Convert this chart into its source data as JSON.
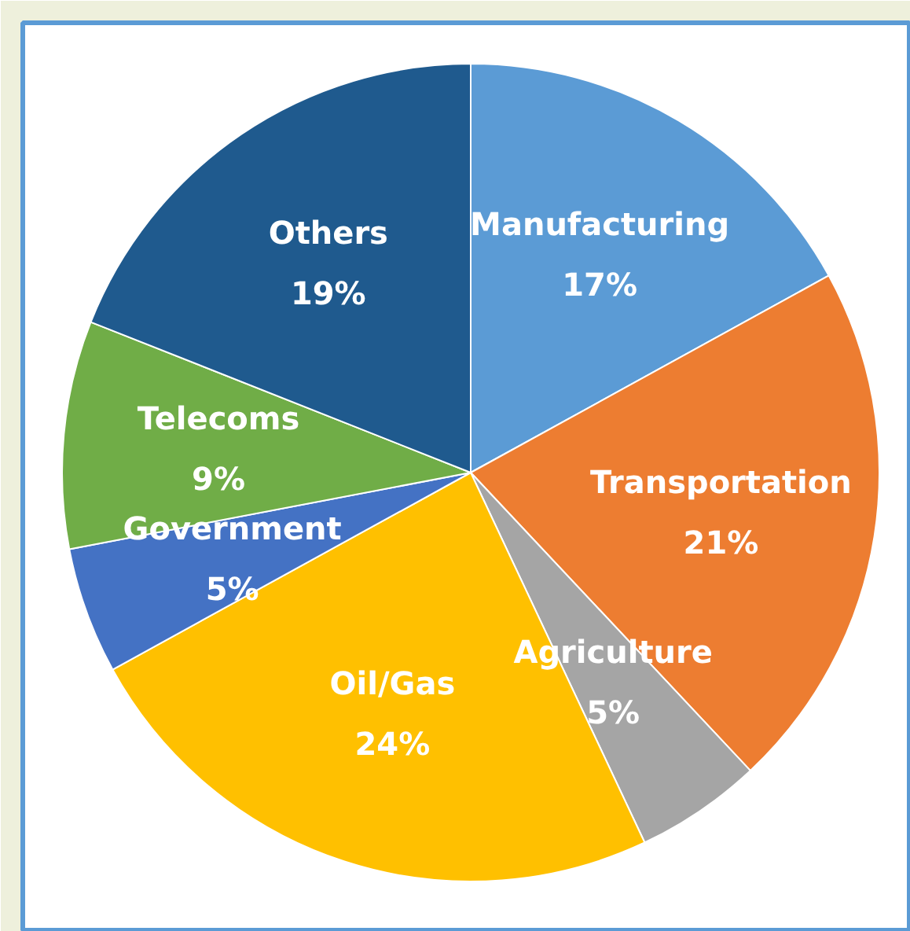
{
  "chart_data": {
    "type": "pie",
    "categories": [
      "Manufacturing",
      "Transportation",
      "Agriculture",
      "Oil/Gas",
      "Government",
      "Telecoms",
      "Others"
    ],
    "values": [
      17,
      21,
      5,
      24,
      5,
      9,
      19
    ],
    "colors": [
      "#5b9bd5",
      "#ed7d31",
      "#a5a5a5",
      "#ffc000",
      "#4472c4",
      "#70ad47",
      "#1f5a8e"
    ],
    "value_labels": [
      "17%",
      "21%",
      "5%",
      "24%",
      "5%",
      "9%",
      "19%"
    ],
    "legend": false
  }
}
